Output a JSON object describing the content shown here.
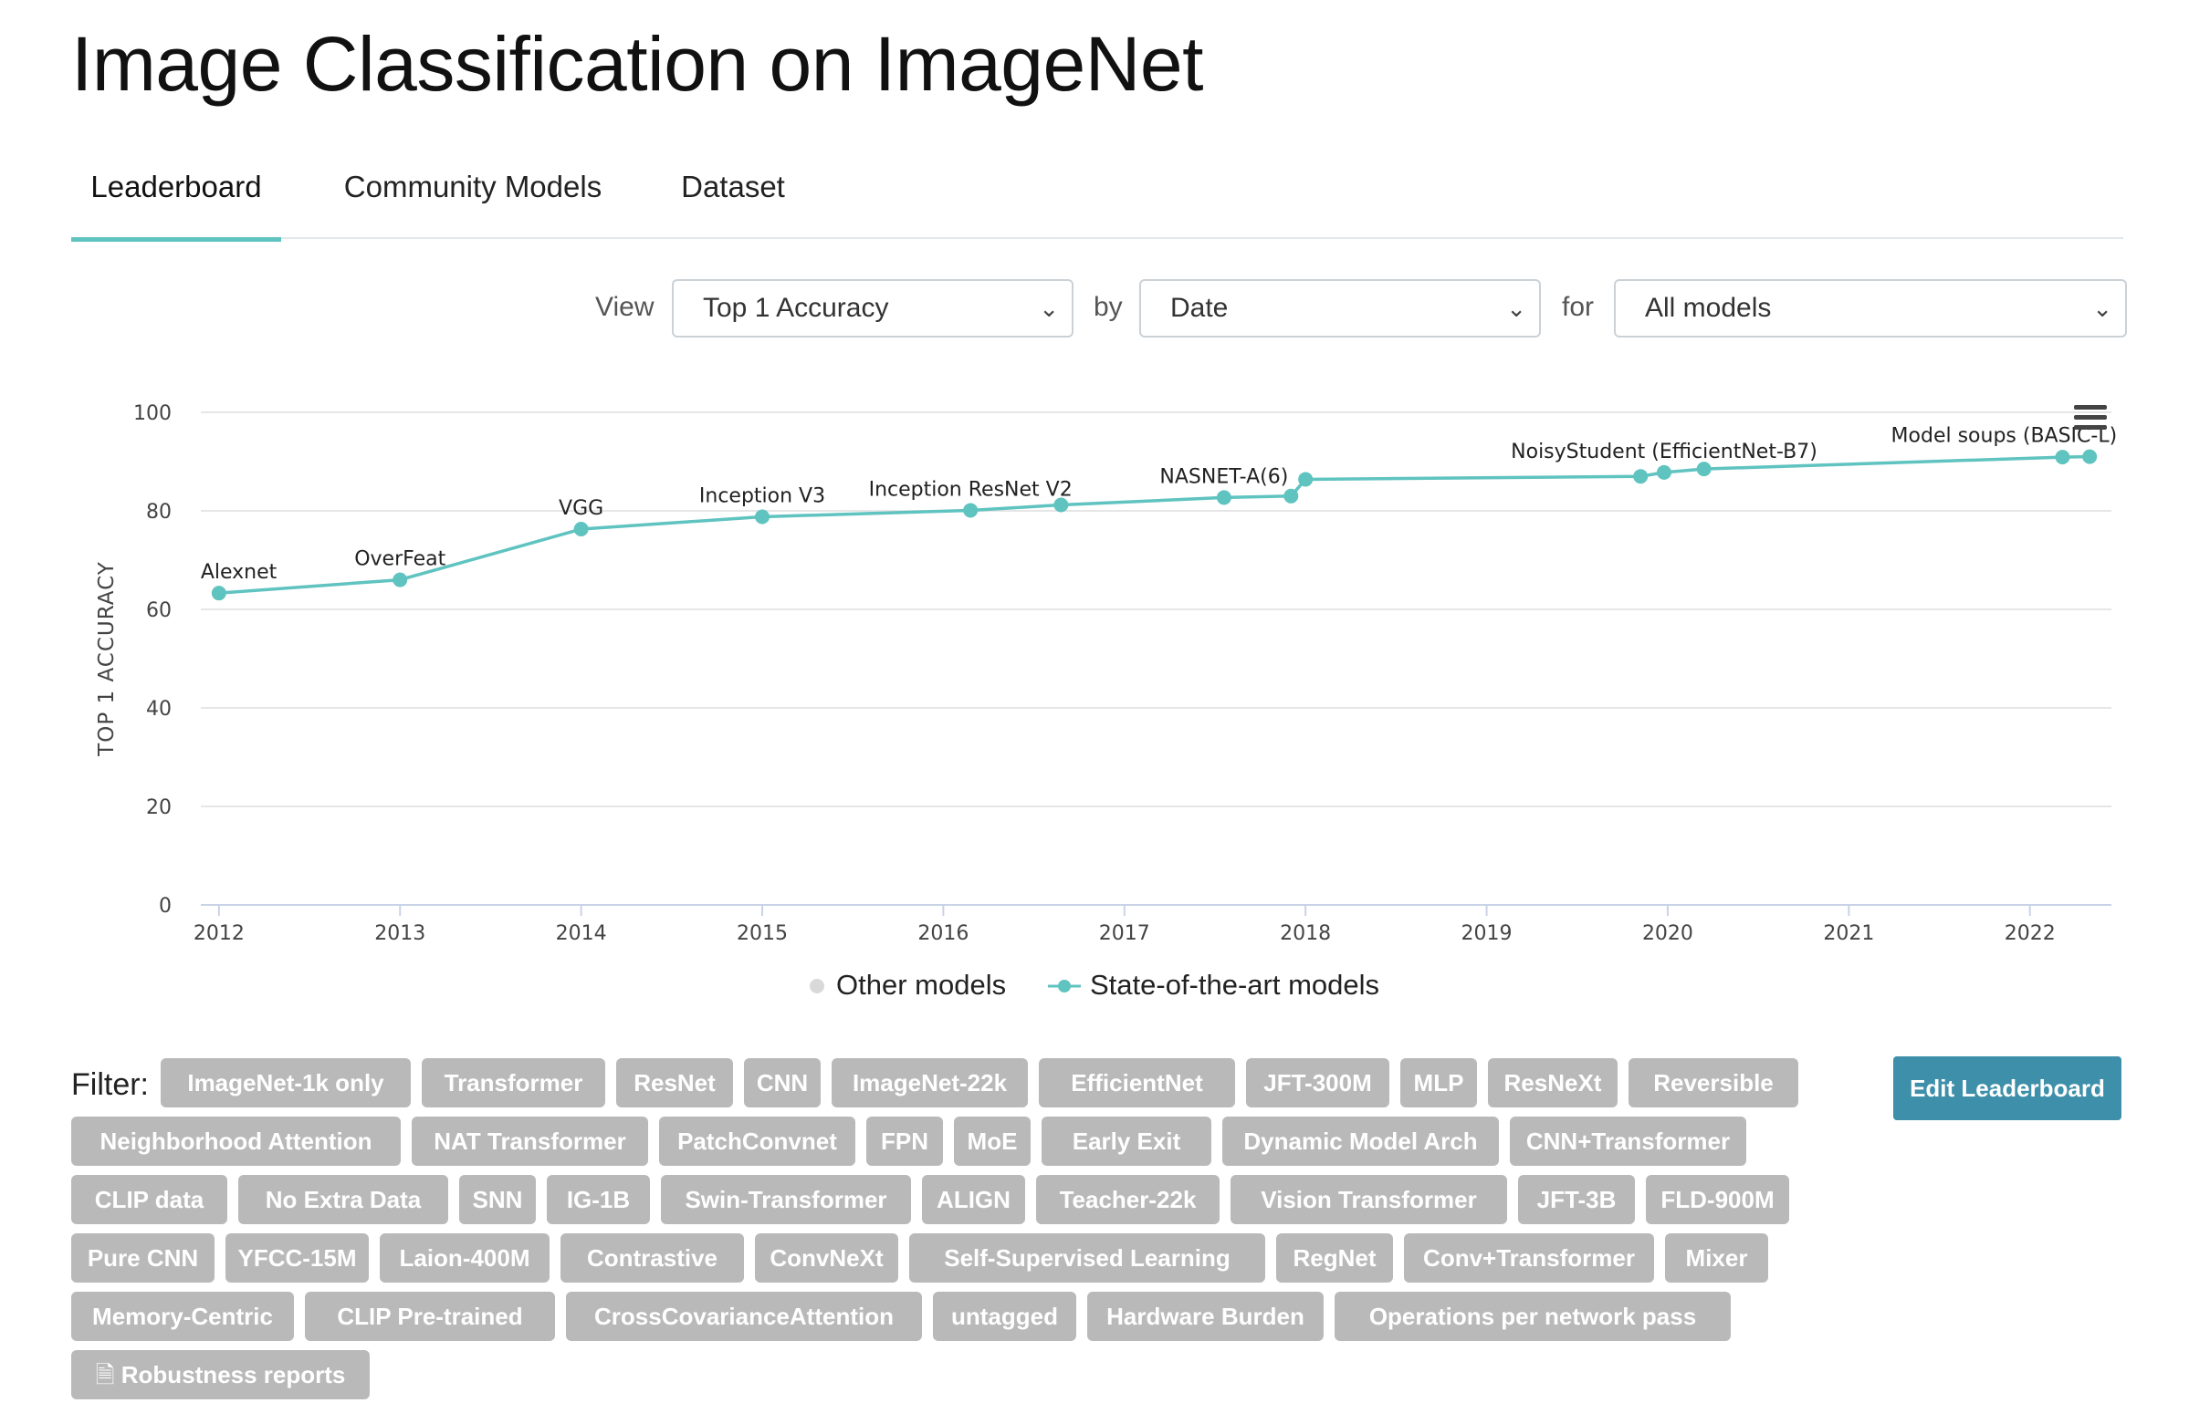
{
  "page": {
    "title": "Image Classification on ImageNet"
  },
  "tabs": [
    {
      "label": "Leaderboard",
      "active": true
    },
    {
      "label": "Community Models",
      "active": false
    },
    {
      "label": "Dataset",
      "active": false
    }
  ],
  "controls": {
    "view_label": "View",
    "view_value": "Top 1 Accuracy",
    "by_label": "by",
    "by_value": "Date",
    "for_label": "for",
    "for_value": "All models"
  },
  "legend": {
    "other": "Other models",
    "sota": "State-of-the-art models",
    "other_color": "#d9d9d9",
    "sota_color": "#5fc3c0"
  },
  "chart_data": {
    "type": "line",
    "ylabel": "TOP 1 ACCURACY",
    "ylim": [
      0,
      100
    ],
    "yticks": [
      0,
      20,
      40,
      60,
      80,
      100
    ],
    "xlim": [
      2011.9,
      2022.45
    ],
    "xticks": [
      2012,
      2013,
      2014,
      2015,
      2016,
      2017,
      2018,
      2019,
      2020,
      2021,
      2022
    ],
    "grid": true,
    "series": [
      {
        "name": "State-of-the-art models",
        "color": "#5fc3c0",
        "points": [
          {
            "x": 2012.0,
            "y": 63.3,
            "label": "Alexnet"
          },
          {
            "x": 2013.0,
            "y": 66.0,
            "label": "OverFeat"
          },
          {
            "x": 2014.0,
            "y": 76.3,
            "label": "VGG"
          },
          {
            "x": 2015.0,
            "y": 78.8,
            "label": "Inception V3"
          },
          {
            "x": 2016.15,
            "y": 80.1,
            "label": "Inception ResNet V2"
          },
          {
            "x": 2016.65,
            "y": 81.2,
            "label": ""
          },
          {
            "x": 2017.55,
            "y": 82.7,
            "label": "NASNET-A(6)"
          },
          {
            "x": 2017.92,
            "y": 83.0,
            "label": ""
          },
          {
            "x": 2018.0,
            "y": 86.4,
            "label": ""
          },
          {
            "x": 2019.85,
            "y": 87.0,
            "label": ""
          },
          {
            "x": 2019.98,
            "y": 87.8,
            "label": "NoisyStudent (EfficientNet-B7)"
          },
          {
            "x": 2020.2,
            "y": 88.5,
            "label": ""
          },
          {
            "x": 2022.18,
            "y": 90.9,
            "label": ""
          },
          {
            "x": 2022.33,
            "y": 91.0,
            "label": "Model soups (BASIC-L)"
          }
        ]
      }
    ]
  },
  "filter": {
    "label": "Filter:",
    "rows": [
      [
        "ImageNet-1k only",
        "Transformer",
        "ResNet",
        "CNN",
        "ImageNet-22k",
        "EfficientNet",
        "JFT-300M",
        "MLP",
        "ResNeXt",
        "Reversible"
      ],
      [
        "Neighborhood Attention",
        "NAT Transformer",
        "PatchConvnet",
        "FPN",
        "MoE",
        "Early Exit",
        "Dynamic Model Arch",
        "CNN+Transformer"
      ],
      [
        "CLIP data",
        "No Extra Data",
        "SNN",
        "IG-1B",
        "Swin-Transformer",
        "ALIGN",
        "Teacher-22k",
        "Vision Transformer",
        "JFT-3B",
        "FLD-900M"
      ],
      [
        "Pure CNN",
        "YFCC-15M",
        "Laion-400M",
        "Contrastive",
        "ConvNeXt",
        "Self-Supervised Learning",
        "RegNet",
        "Conv+Transformer",
        "Mixer"
      ],
      [
        "Memory-Centric",
        "CLIP Pre-trained",
        "CrossCovarianceAttention",
        "untagged",
        "Hardware Burden",
        "Operations per network pass"
      ],
      [
        "Robustness reports"
      ]
    ],
    "robustness_icon": "document-icon"
  },
  "edit_button": {
    "label": "Edit Leaderboard"
  }
}
